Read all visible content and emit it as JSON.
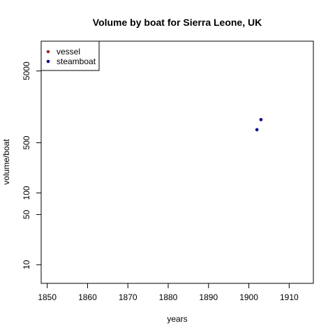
{
  "chart_data": {
    "type": "scatter",
    "title": "Volume by boat for Sierra Leone, UK",
    "xlabel": "years",
    "ylabel": "volume/boat",
    "xlim": [
      1848.5,
      1916
    ],
    "ylim": [
      5.5,
      13000
    ],
    "y_scale": "log",
    "x_ticks": [
      1850,
      1860,
      1870,
      1880,
      1890,
      1900,
      1910
    ],
    "x_tick_labels": [
      "1850",
      "1860",
      "1870",
      "1880",
      "1890",
      "1900",
      "1910"
    ],
    "y_ticks": [
      10,
      50,
      100,
      500,
      5000
    ],
    "y_tick_labels": [
      "10",
      "50",
      "100",
      "500",
      "5000"
    ],
    "grid": false,
    "legend_position": "top-left",
    "series": [
      {
        "name": "vessel",
        "color": "#a52a2a",
        "points": []
      },
      {
        "name": "steamboat",
        "color": "#00008b",
        "points": [
          {
            "x": 1902,
            "y": 760
          },
          {
            "x": 1903,
            "y": 1050
          }
        ]
      }
    ]
  }
}
